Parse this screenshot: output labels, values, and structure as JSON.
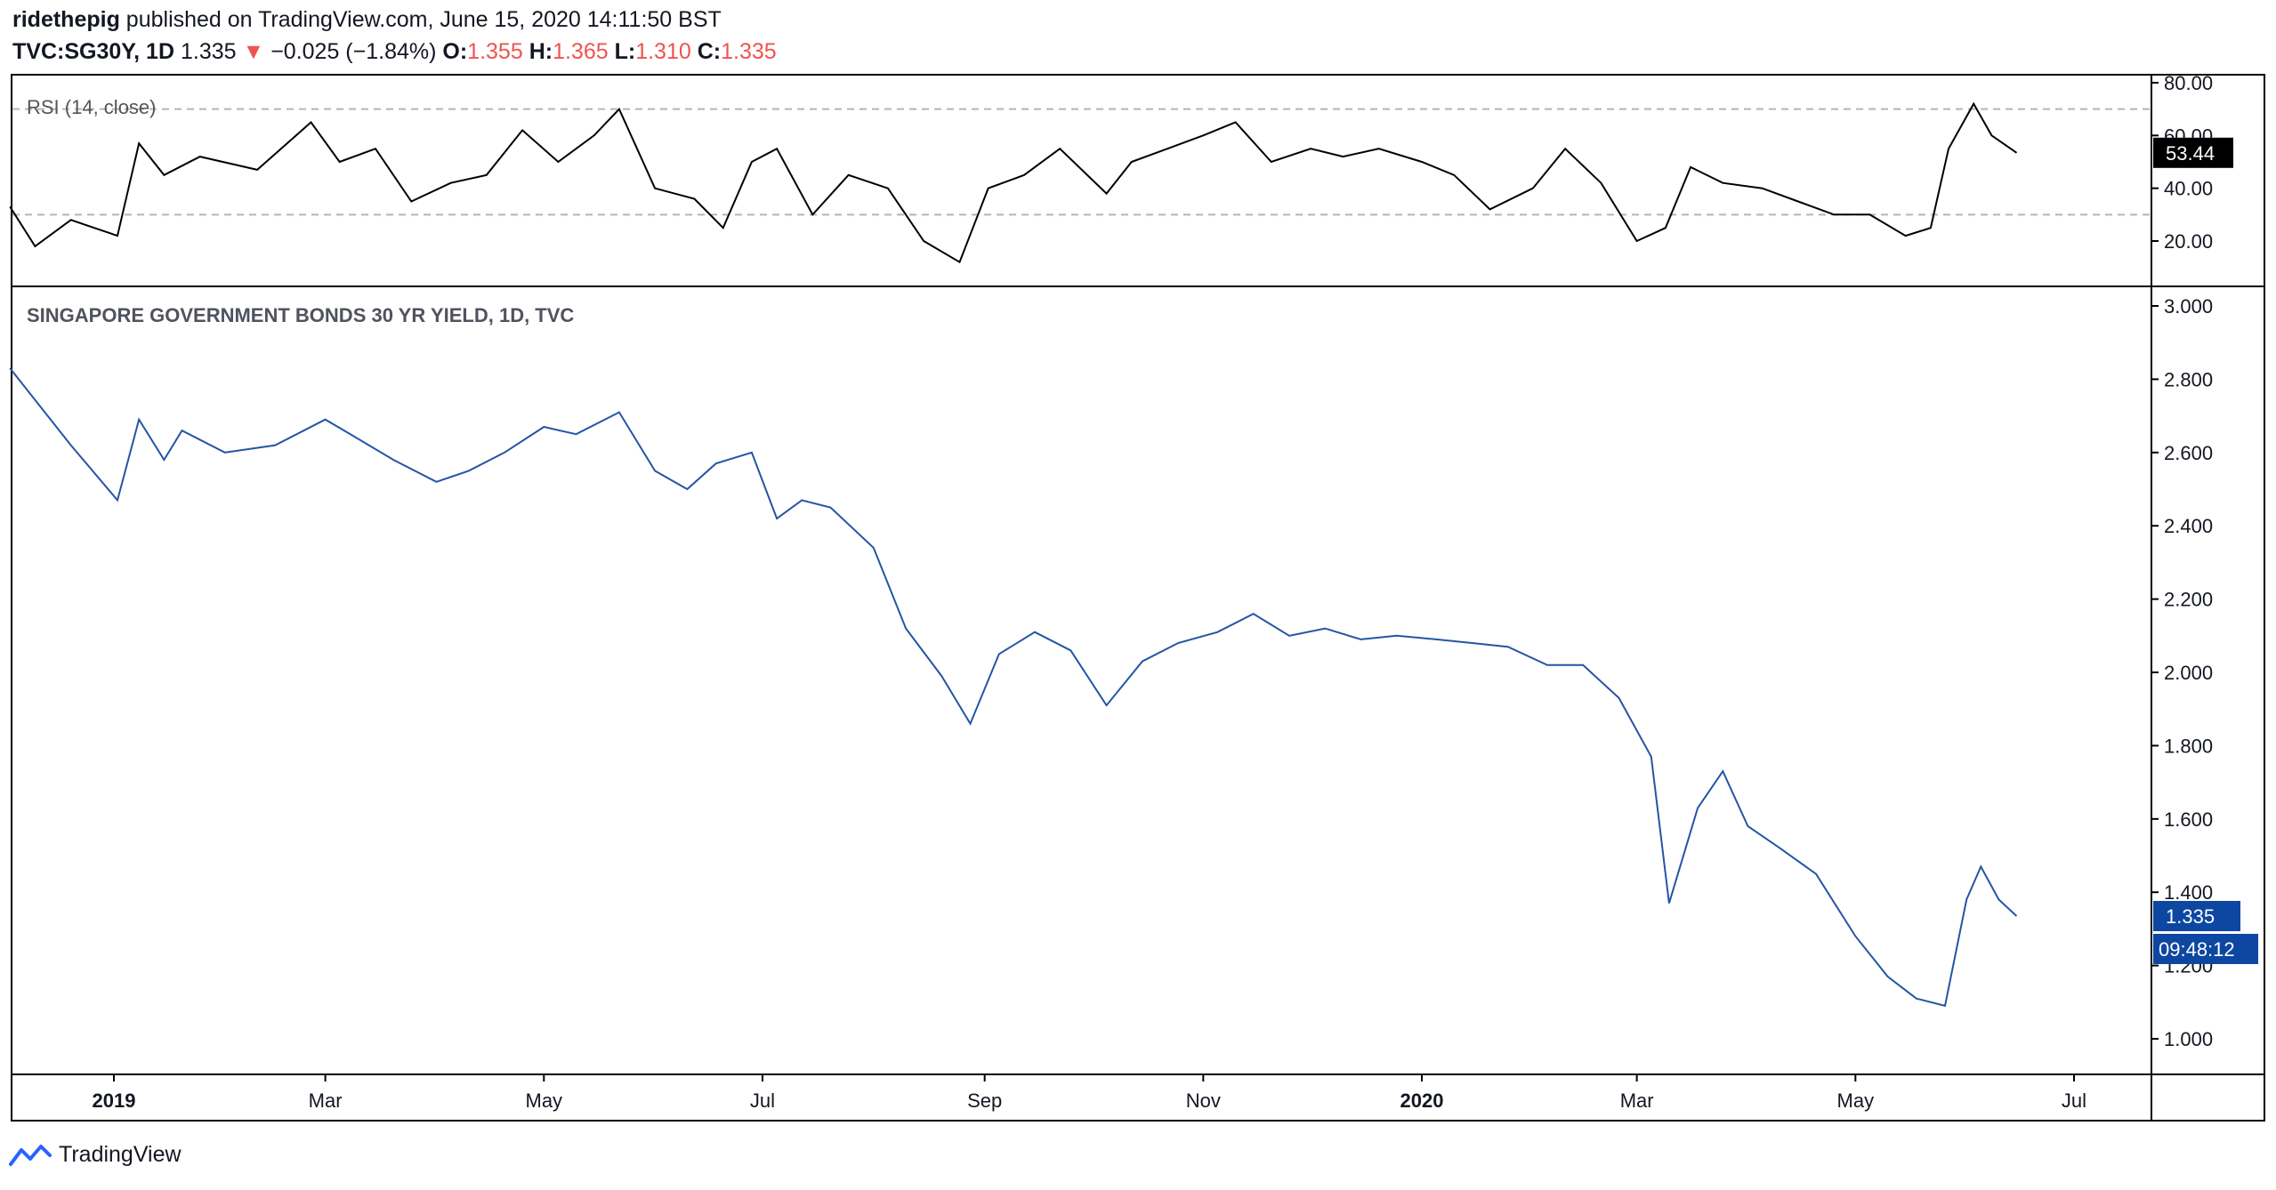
{
  "header": {
    "author": "ridethepig",
    "published_text": "published on TradingView.com, June 15, 2020 14:11:50 BST",
    "symbol": "TVC:SG30Y, 1D",
    "last": "1.335",
    "arrow": "▼",
    "change": "−0.025 (−1.84%)",
    "o_label": "O:",
    "o_value": "1.355",
    "h_label": "H:",
    "h_value": "1.365",
    "l_label": "L:",
    "l_value": "1.310",
    "c_label": "C:",
    "c_value": "1.335"
  },
  "rsi_panel": {
    "title": "RSI (14, close)",
    "current_label": "53.44",
    "upper_band": 70,
    "lower_band": 30,
    "y_ticks": [
      "20.00",
      "40.00",
      "60.00",
      "80.00"
    ]
  },
  "price_panel": {
    "title": "SINGAPORE GOVERNMENT BONDS 30 YR YIELD, 1D, TVC",
    "last_label": "1.335",
    "countdown": "09:48:12",
    "y_ticks": [
      "1.000",
      "1.200",
      "1.400",
      "1.600",
      "1.800",
      "2.000",
      "2.200",
      "2.400",
      "2.600",
      "2.800",
      "3.000"
    ]
  },
  "x_axis": {
    "labels": [
      "2019",
      "Mar",
      "May",
      "Jul",
      "Sep",
      "Nov",
      "2020",
      "Mar",
      "May",
      "Jul"
    ]
  },
  "footer": {
    "brand": "TradingView"
  },
  "colors": {
    "price_line": "#2455a4",
    "rsi_line": "#000000",
    "badge_blue": "#0d47a1",
    "badge_black": "#000000",
    "down": "#ef5350",
    "band": "#b2b5be"
  },
  "chart_data": [
    {
      "type": "line",
      "title": "SINGAPORE GOVERNMENT BONDS 30 YR YIELD, 1D, TVC",
      "x": [
        "2018-12-03",
        "2018-12-20",
        "2019-01-02",
        "2019-01-08",
        "2019-01-15",
        "2019-01-20",
        "2019-02-01",
        "2019-02-15",
        "2019-03-01",
        "2019-03-08",
        "2019-03-20",
        "2019-04-01",
        "2019-04-10",
        "2019-04-20",
        "2019-05-01",
        "2019-05-10",
        "2019-05-22",
        "2019-06-01",
        "2019-06-10",
        "2019-06-18",
        "2019-06-28",
        "2019-07-05",
        "2019-07-12",
        "2019-07-20",
        "2019-08-01",
        "2019-08-10",
        "2019-08-20",
        "2019-08-28",
        "2019-09-05",
        "2019-09-15",
        "2019-09-25",
        "2019-10-05",
        "2019-10-15",
        "2019-10-25",
        "2019-11-05",
        "2019-11-15",
        "2019-11-25",
        "2019-12-05",
        "2019-12-15",
        "2019-12-25",
        "2020-01-05",
        "2020-01-15",
        "2020-01-25",
        "2020-02-05",
        "2020-02-15",
        "2020-02-25",
        "2020-03-05",
        "2020-03-10",
        "2020-03-18",
        "2020-03-25",
        "2020-04-01",
        "2020-04-10",
        "2020-04-20",
        "2020-05-01",
        "2020-05-10",
        "2020-05-18",
        "2020-05-26",
        "2020-06-01",
        "2020-06-05",
        "2020-06-10",
        "2020-06-15"
      ],
      "series": [
        {
          "values": [
            2.83,
            2.62,
            2.47,
            2.69,
            2.58,
            2.66,
            2.6,
            2.62,
            2.69,
            2.65,
            2.58,
            2.52,
            2.55,
            2.6,
            2.67,
            2.65,
            2.71,
            2.55,
            2.5,
            2.57,
            2.6,
            2.42,
            2.47,
            2.45,
            2.34,
            2.12,
            1.99,
            1.86,
            2.05,
            2.11,
            2.06,
            1.91,
            2.03,
            2.08,
            2.11,
            2.16,
            2.1,
            2.12,
            2.09,
            2.1,
            2.09,
            2.08,
            2.07,
            2.02,
            2.02,
            1.93,
            1.77,
            1.37,
            1.63,
            1.73,
            1.58,
            1.52,
            1.45,
            1.28,
            1.17,
            1.11,
            1.09,
            1.38,
            1.47,
            1.38,
            1.335
          ]
        }
      ],
      "ylim": [
        0.9,
        3.05
      ]
    },
    {
      "type": "line",
      "title": "RSI (14, close)",
      "x": [
        "2018-12-03",
        "2018-12-10",
        "2018-12-20",
        "2019-01-02",
        "2019-01-08",
        "2019-01-15",
        "2019-01-25",
        "2019-02-10",
        "2019-02-25",
        "2019-03-05",
        "2019-03-15",
        "2019-03-25",
        "2019-04-05",
        "2019-04-15",
        "2019-04-25",
        "2019-05-05",
        "2019-05-15",
        "2019-05-22",
        "2019-06-01",
        "2019-06-12",
        "2019-06-20",
        "2019-06-28",
        "2019-07-05",
        "2019-07-15",
        "2019-07-25",
        "2019-08-05",
        "2019-08-15",
        "2019-08-25",
        "2019-09-02",
        "2019-09-12",
        "2019-09-22",
        "2019-10-05",
        "2019-10-12",
        "2019-10-22",
        "2019-11-01",
        "2019-11-10",
        "2019-11-20",
        "2019-12-01",
        "2019-12-10",
        "2019-12-20",
        "2020-01-01",
        "2020-01-10",
        "2020-01-20",
        "2020-02-01",
        "2020-02-10",
        "2020-02-20",
        "2020-03-01",
        "2020-03-09",
        "2020-03-16",
        "2020-03-25",
        "2020-04-05",
        "2020-04-15",
        "2020-04-25",
        "2020-05-05",
        "2020-05-15",
        "2020-05-22",
        "2020-05-27",
        "2020-06-03",
        "2020-06-08",
        "2020-06-15"
      ],
      "series": [
        {
          "values": [
            33,
            18,
            28,
            22,
            57,
            45,
            52,
            47,
            65,
            50,
            55,
            35,
            42,
            45,
            62,
            50,
            60,
            70,
            40,
            36,
            25,
            50,
            55,
            30,
            45,
            40,
            20,
            12,
            40,
            45,
            55,
            38,
            50,
            55,
            60,
            65,
            50,
            55,
            52,
            55,
            50,
            45,
            32,
            40,
            55,
            42,
            20,
            25,
            48,
            42,
            40,
            35,
            30,
            30,
            22,
            25,
            55,
            72,
            60,
            53.44
          ]
        }
      ],
      "ylim": [
        6,
        84
      ]
    }
  ]
}
